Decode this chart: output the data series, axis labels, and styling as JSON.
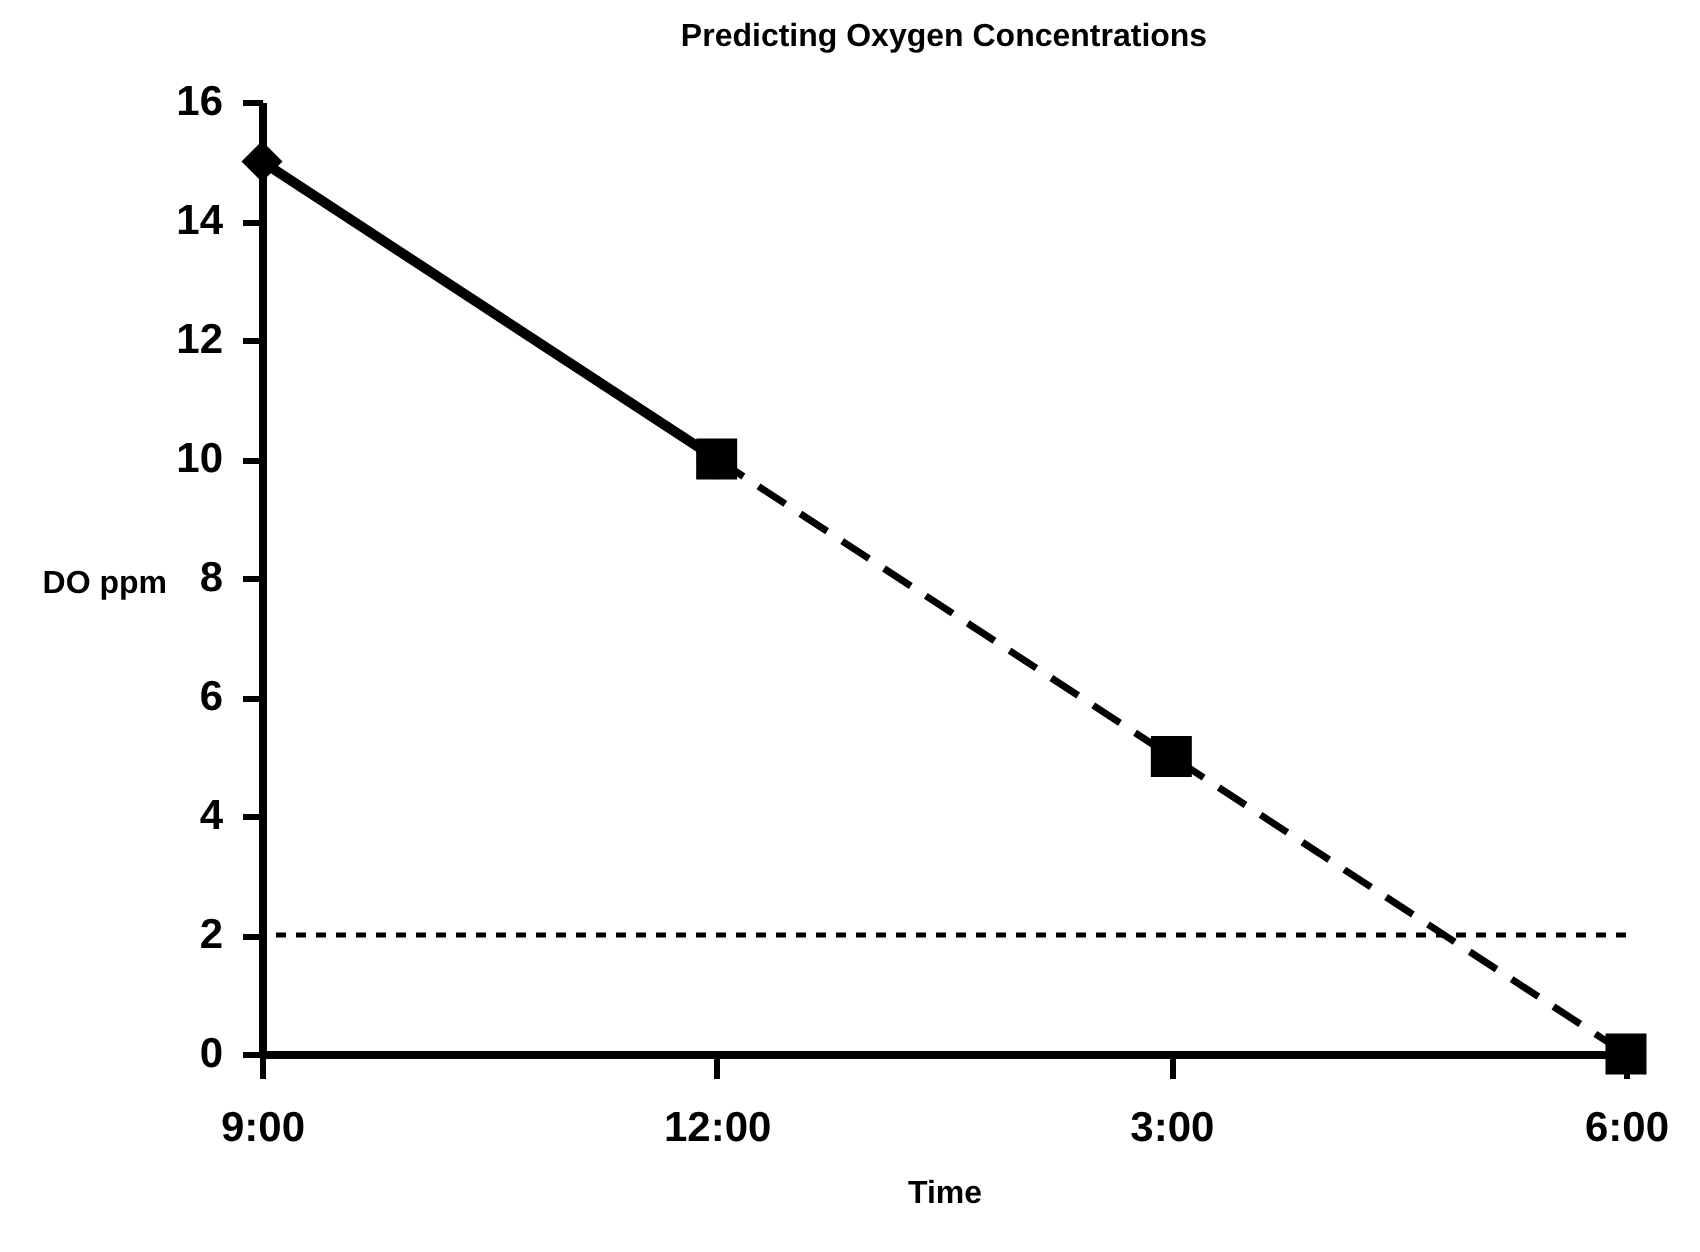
{
  "chart_data": {
    "type": "line",
    "title": "Predicting Oxygen Concentrations",
    "xlabel": "Time",
    "ylabel": "DO ppm",
    "categories": [
      "9:00",
      "12:00",
      "3:00",
      "6:00"
    ],
    "ylim": [
      0,
      16
    ],
    "yticks": [
      0,
      2,
      4,
      6,
      8,
      10,
      12,
      14,
      16
    ],
    "series": [
      {
        "color": "#000000",
        "values": [
          15,
          10,
          null,
          null
        ],
        "marker": "diamond",
        "line_style": "solid"
      },
      {
        "color": "#000000",
        "values": [
          null,
          10,
          5,
          0
        ],
        "marker": "square",
        "line_style": "dashed"
      }
    ],
    "ref_lines": [
      {
        "axis": "y",
        "value": 2,
        "color": "#000000",
        "line_style": "dotted"
      }
    ]
  }
}
